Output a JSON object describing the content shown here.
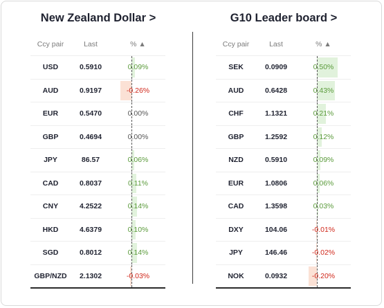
{
  "left_panel": {
    "title": "New Zealand Dollar >",
    "headers": {
      "ccy": "Ccy pair",
      "last": "Last",
      "pct": "% ▲"
    },
    "rows": [
      {
        "ccy": "USD",
        "last": "0.5910",
        "pct": "0.09%",
        "value": 0.09
      },
      {
        "ccy": "AUD",
        "last": "0.9197",
        "pct": "-0.26%",
        "value": -0.26
      },
      {
        "ccy": "EUR",
        "last": "0.5470",
        "pct": "0.00%",
        "value": 0.0
      },
      {
        "ccy": "GBP",
        "last": "0.4694",
        "pct": "0.00%",
        "value": 0.0
      },
      {
        "ccy": "JPY",
        "last": "86.57",
        "pct": "0.06%",
        "value": 0.06
      },
      {
        "ccy": "CAD",
        "last": "0.8037",
        "pct": "0.11%",
        "value": 0.11
      },
      {
        "ccy": "CNY",
        "last": "4.2522",
        "pct": "0.14%",
        "value": 0.14
      },
      {
        "ccy": "HKD",
        "last": "4.6379",
        "pct": "0.10%",
        "value": 0.1
      },
      {
        "ccy": "SGD",
        "last": "0.8012",
        "pct": "0.14%",
        "value": 0.14
      },
      {
        "ccy": "GBP/NZD",
        "last": "2.1302",
        "pct": "-0.03%",
        "value": -0.03
      }
    ]
  },
  "right_panel": {
    "title": "G10 Leader board >",
    "headers": {
      "ccy": "Ccy pair",
      "last": "Last",
      "pct": "% ▲"
    },
    "rows": [
      {
        "ccy": "SEK",
        "last": "0.0909",
        "pct": "0.50%",
        "value": 0.5
      },
      {
        "ccy": "AUD",
        "last": "0.6428",
        "pct": "0.43%",
        "value": 0.43
      },
      {
        "ccy": "CHF",
        "last": "1.1321",
        "pct": "0.21%",
        "value": 0.21
      },
      {
        "ccy": "GBP",
        "last": "1.2592",
        "pct": "0.12%",
        "value": 0.12
      },
      {
        "ccy": "NZD",
        "last": "0.5910",
        "pct": "0.09%",
        "value": 0.09
      },
      {
        "ccy": "EUR",
        "last": "1.0806",
        "pct": "0.06%",
        "value": 0.06
      },
      {
        "ccy": "CAD",
        "last": "1.3598",
        "pct": "0.03%",
        "value": 0.03
      },
      {
        "ccy": "DXY",
        "last": "104.06",
        "pct": "-0.01%",
        "value": -0.01
      },
      {
        "ccy": "JPY",
        "last": "146.46",
        "pct": "-0.02%",
        "value": -0.02
      },
      {
        "ccy": "NOK",
        "last": "0.0932",
        "pct": "-0.20%",
        "value": -0.2
      }
    ]
  },
  "colors": {
    "positive": "#5a9a3a",
    "negative": "#d0271a",
    "positive_bar": "#e1f2dc",
    "negative_bar": "#fbe1d5"
  }
}
